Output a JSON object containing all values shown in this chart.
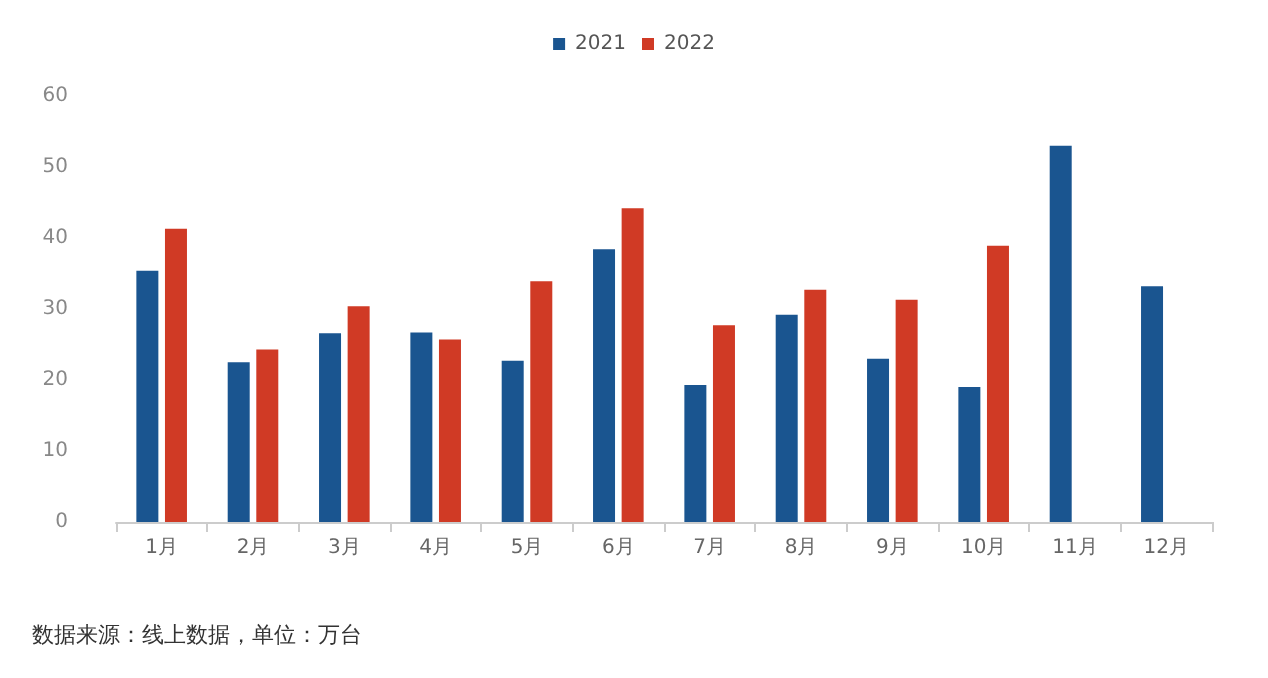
{
  "chart_data": {
    "type": "bar",
    "categories": [
      "1月",
      "2月",
      "3月",
      "4月",
      "5月",
      "6月",
      "7月",
      "8月",
      "9月",
      "10月",
      "11月",
      "12月"
    ],
    "series": [
      {
        "name": "2021",
        "color": "#1a5590",
        "values": [
          35.4,
          22.5,
          26.6,
          26.7,
          22.7,
          38.4,
          19.3,
          29.2,
          23.0,
          19.0,
          53.0,
          33.2
        ]
      },
      {
        "name": "2022",
        "color": "#d03a25",
        "values": [
          41.3,
          24.3,
          30.4,
          25.7,
          33.9,
          44.2,
          27.7,
          32.7,
          31.3,
          38.9,
          null,
          null
        ]
      }
    ],
    "ylim": [
      0,
      60
    ],
    "yticks": [
      0,
      10,
      20,
      30,
      40,
      50,
      60
    ],
    "grid": false,
    "legend": "top",
    "annotations": [
      "数据来源：线上数据，单位：万台"
    ]
  }
}
